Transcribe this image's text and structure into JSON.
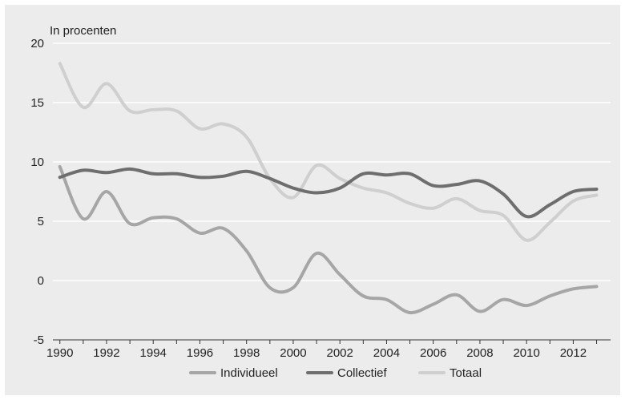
{
  "chart_data": {
    "type": "line",
    "unit_label": "In procenten",
    "title": "",
    "xlabel": "",
    "ylabel": "",
    "x": [
      1990,
      1991,
      1992,
      1993,
      1994,
      1995,
      1996,
      1997,
      1998,
      1999,
      2000,
      2001,
      2002,
      2003,
      2004,
      2005,
      2006,
      2007,
      2008,
      2009,
      2010,
      2011,
      2012,
      2013
    ],
    "xlim": [
      1989.7,
      2013.6
    ],
    "ylim": [
      -5,
      20
    ],
    "y_ticks": [
      -5,
      0,
      5,
      10,
      15,
      20
    ],
    "x_ticks": [
      1990,
      1992,
      1994,
      1996,
      1998,
      2000,
      2002,
      2004,
      2006,
      2008,
      2010,
      2012
    ],
    "grid": "horizontal",
    "legend_position": "bottom",
    "series": [
      {
        "name": "Individueel",
        "color": "#a6a6a6",
        "values": [
          9.6,
          5.2,
          7.5,
          4.8,
          5.3,
          5.2,
          4.0,
          4.4,
          2.5,
          -0.6,
          -0.6,
          2.3,
          0.5,
          -1.3,
          -1.6,
          -2.7,
          -2.0,
          -1.2,
          -2.6,
          -1.6,
          -2.1,
          -1.3,
          -0.7,
          -0.5
        ]
      },
      {
        "name": "Collectief",
        "color": "#6e6e6e",
        "values": [
          8.7,
          9.3,
          9.1,
          9.4,
          9.0,
          9.0,
          8.7,
          8.8,
          9.2,
          8.6,
          7.8,
          7.4,
          7.8,
          9.0,
          8.9,
          9.0,
          8.0,
          8.1,
          8.4,
          7.3,
          5.4,
          6.4,
          7.5,
          7.7
        ]
      },
      {
        "name": "Totaal",
        "color": "#cfcfcf",
        "values": [
          18.3,
          14.6,
          16.6,
          14.3,
          14.4,
          14.3,
          12.8,
          13.2,
          12.1,
          8.6,
          7.0,
          9.7,
          8.6,
          7.8,
          7.4,
          6.5,
          6.1,
          6.9,
          5.9,
          5.5,
          3.4,
          4.9,
          6.7,
          7.2
        ]
      }
    ]
  }
}
